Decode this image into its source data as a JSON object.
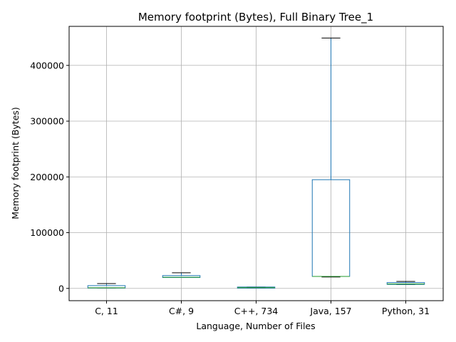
{
  "chart_data": {
    "type": "box",
    "title": "Memory footprint (Bytes), Full Binary Tree_1",
    "xlabel": "Language, Number of Files",
    "ylabel": "Memory footprint (Bytes)",
    "ylim": [
      -22000,
      470000
    ],
    "yticks": [
      0,
      100000,
      200000,
      300000,
      400000
    ],
    "ytick_labels": [
      "0",
      "100000",
      "200000",
      "300000",
      "400000"
    ],
    "grid": true,
    "categories": [
      "C, 11",
      "C#, 9",
      "C++, 734",
      "Java, 157",
      "Python, 31"
    ],
    "boxes": [
      {
        "label": "C, 11",
        "whisker_low": 800,
        "q1": 800,
        "median": 1200,
        "q3": 5000,
        "whisker_high": 8700
      },
      {
        "label": "C#, 9",
        "whisker_low": 19500,
        "q1": 19500,
        "median": 20000,
        "q3": 23000,
        "whisker_high": 28000
      },
      {
        "label": "C++, 734",
        "whisker_low": 800,
        "q1": 1000,
        "median": 1500,
        "q3": 2500,
        "whisker_high": 2500
      },
      {
        "label": "Java, 157",
        "whisker_low": 20500,
        "q1": 21500,
        "median": 21500,
        "q3": 195000,
        "whisker_high": 449000
      },
      {
        "label": "Python, 31",
        "whisker_low": 7000,
        "q1": 7200,
        "median": 8000,
        "q3": 10500,
        "whisker_high": 12500
      }
    ],
    "colors": {
      "box": "#1f77b4",
      "median": "#2ca02c",
      "whisker_cap": "#000000",
      "grid": "#b0b0b0"
    }
  }
}
